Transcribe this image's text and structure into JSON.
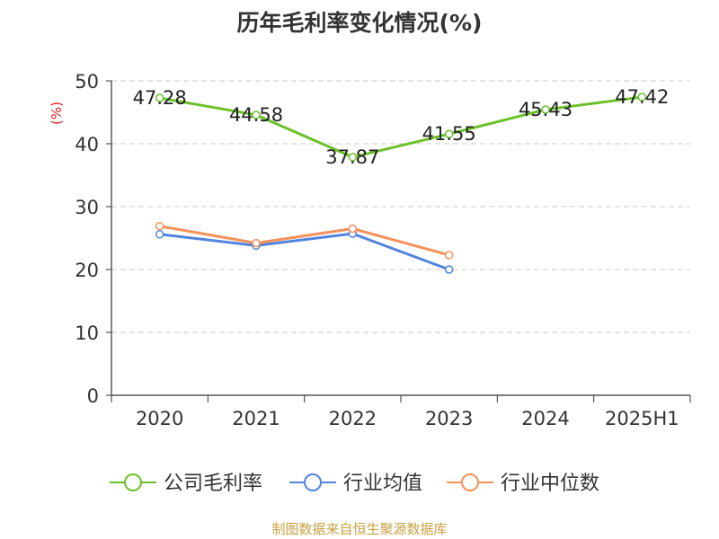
{
  "chart_data": {
    "type": "line",
    "title": "历年毛利率变化情况(%)",
    "ylabel": "(%)",
    "categories": [
      "2020",
      "2021",
      "2022",
      "2023",
      "2024",
      "2025H1"
    ],
    "ylim": [
      0,
      50
    ],
    "yticks": [
      0,
      10,
      20,
      30,
      40,
      50
    ],
    "grid": true,
    "legend_position": "bottom",
    "series": [
      {
        "name": "公司毛利率",
        "color": "#6cc02a",
        "values": [
          47.28,
          44.58,
          37.87,
          41.55,
          45.43,
          47.42
        ],
        "labels": [
          "47.28",
          "44.58",
          "37.87",
          "41.55",
          "45.43",
          "47.42"
        ]
      },
      {
        "name": "行业均值",
        "color": "#5184de",
        "values": [
          25.6,
          23.8,
          25.7,
          20.0,
          null,
          null
        ]
      },
      {
        "name": "行业中位数",
        "color": "#f5915a",
        "values": [
          26.9,
          24.2,
          26.5,
          22.3,
          null,
          null
        ]
      }
    ]
  },
  "source_text": "制图数据来自恒生聚源数据库"
}
